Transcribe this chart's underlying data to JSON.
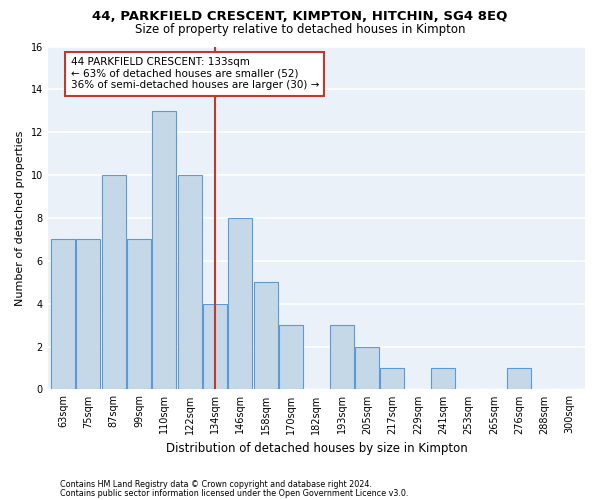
{
  "title1": "44, PARKFIELD CRESCENT, KIMPTON, HITCHIN, SG4 8EQ",
  "title2": "Size of property relative to detached houses in Kimpton",
  "xlabel": "Distribution of detached houses by size in Kimpton",
  "ylabel": "Number of detached properties",
  "categories": [
    "63sqm",
    "75sqm",
    "87sqm",
    "99sqm",
    "110sqm",
    "122sqm",
    "134sqm",
    "146sqm",
    "158sqm",
    "170sqm",
    "182sqm",
    "193sqm",
    "205sqm",
    "217sqm",
    "229sqm",
    "241sqm",
    "253sqm",
    "265sqm",
    "276sqm",
    "288sqm",
    "300sqm"
  ],
  "values": [
    7,
    7,
    10,
    7,
    13,
    10,
    4,
    8,
    5,
    3,
    0,
    3,
    2,
    1,
    0,
    1,
    0,
    0,
    1,
    0,
    0
  ],
  "bar_color": "#c5d8e8",
  "bar_edgecolor": "#5b9bd5",
  "vline_x": 6.0,
  "vline_color": "#c0392b",
  "annotation_text": "44 PARKFIELD CRESCENT: 133sqm\n← 63% of detached houses are smaller (52)\n36% of semi-detached houses are larger (30) →",
  "annotation_box_edgecolor": "#c0392b",
  "annotation_box_facecolor": "white",
  "ylim": [
    0,
    16
  ],
  "yticks": [
    0,
    2,
    4,
    6,
    8,
    10,
    12,
    14,
    16
  ],
  "footer1": "Contains HM Land Registry data © Crown copyright and database right 2024.",
  "footer2": "Contains public sector information licensed under the Open Government Licence v3.0.",
  "bg_color": "#eaf1f8",
  "grid_color": "white",
  "title1_fontsize": 9.5,
  "title2_fontsize": 8.5,
  "tick_fontsize": 7,
  "ylabel_fontsize": 8,
  "xlabel_fontsize": 8.5,
  "annotation_fontsize": 7.5,
  "footer_fontsize": 5.8
}
